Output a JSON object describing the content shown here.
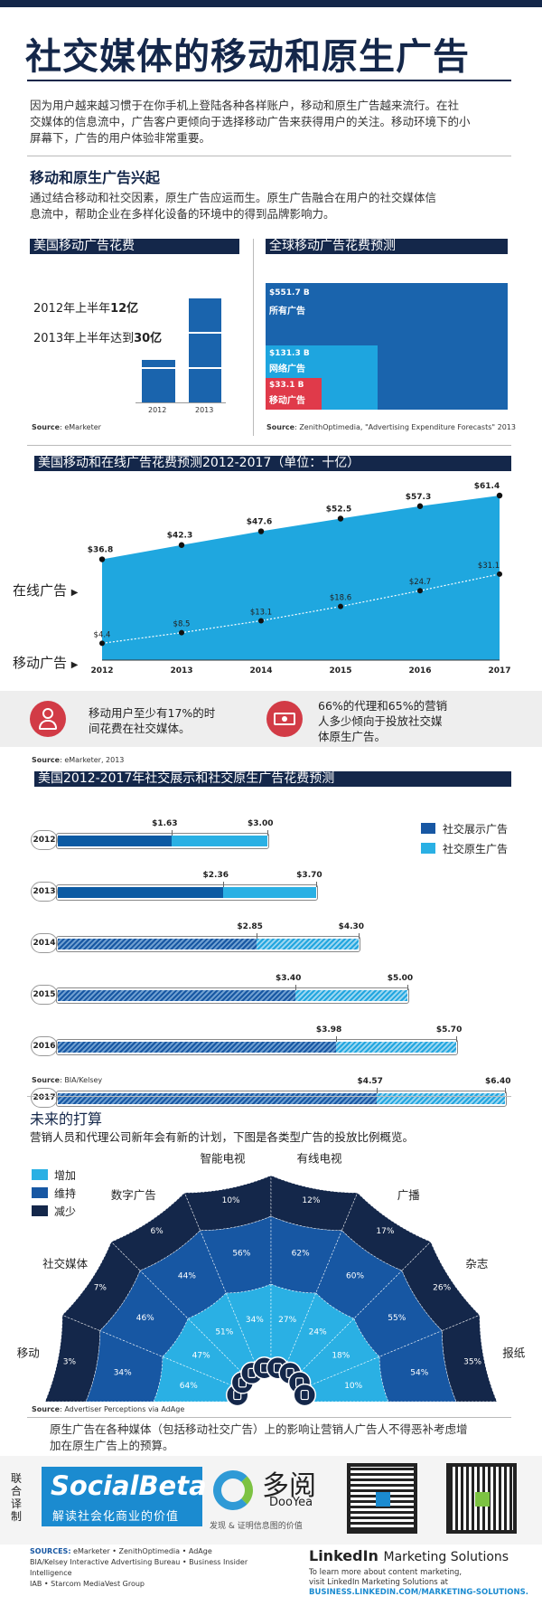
{
  "title": "社交媒体的移动和原生广告",
  "intro": [
    "因为用户越来越习惯于在你手机上登陆各种各样账户，移动和原生广告越来流行。在社",
    "交媒体的信息流中，广告客户更倾向于选择移动广告来获得用户的关注。移动环境下的小",
    "屏幕下，广告的用户体验非常重要。"
  ],
  "section1": {
    "heading": "移动和原生广告兴起",
    "text": [
      "通过结合移动和社交因素，原生广告应运而生。原生广告融合在用户的社交媒体信",
      "息流中，帮助企业在多样化设备的环境中的得到品牌影响力。"
    ]
  },
  "us_mobile": {
    "header": "美国移动广告花费",
    "line1_prefix": "2012年上半年",
    "line1_value": "12亿",
    "line2_prefix": "2013年上半年达到",
    "line2_value": "30亿",
    "years": [
      "2012",
      "2013"
    ],
    "source_label": "Source",
    "source": ": eMarketer"
  },
  "global": {
    "header": "全球移动广告花费预测",
    "all": {
      "value": "$551.7 B",
      "label": "所有广告"
    },
    "online": {
      "value": "$131.3 B",
      "label": "网络广告"
    },
    "mobile": {
      "value": "$33.1 B",
      "label": "移动广告"
    },
    "source_label": "Source",
    "source": ": ZenithOptimedia, \"Advertising Expenditure Forecasts\" 2013"
  },
  "forecast": {
    "header": "美国移动和在线广告花费预测2012-2017（单位：十亿）",
    "online_label": "在线广告",
    "mobile_label": "移动广告",
    "colors": {
      "area": "#1fa7df",
      "navy": "#14274a"
    }
  },
  "chart_data": {
    "type": "area",
    "x": [
      "2012",
      "2013",
      "2014",
      "2015",
      "2016",
      "2017"
    ],
    "series": [
      {
        "name": "在线广告",
        "values": [
          36.8,
          42.3,
          47.6,
          52.5,
          57.3,
          61.4
        ],
        "labels": [
          "$36.8",
          "$42.3",
          "$47.6",
          "$52.5",
          "$57.3",
          "$61.4"
        ]
      },
      {
        "name": "移动广告",
        "values": [
          4.4,
          8.5,
          13.1,
          18.6,
          24.7,
          31.1
        ],
        "labels": [
          "$4.4",
          "$8.5",
          "$13.1",
          "$18.6",
          "$24.7",
          "$31.1"
        ]
      }
    ]
  },
  "stats": {
    "left": [
      "移动用户至少有17%的时",
      "间花费在社交媒体。"
    ],
    "right": [
      "66%的代理和65%的营销",
      "人多少倾向于投放社交媒",
      "体原生广告。"
    ],
    "source_label": "Source",
    "source": ": eMarketer, 2013"
  },
  "social": {
    "header": "美国2012-2017年社交展示和社交原生广告花费预测",
    "legend": [
      {
        "name": "社交展示广告",
        "color": "#1757a3"
      },
      {
        "name": "社交原生广告",
        "color": "#2ab0e4"
      }
    ],
    "rows": [
      {
        "year": "2012",
        "display": 1.63,
        "total": 3.0,
        "dl": "$1.63",
        "tl": "$3.00"
      },
      {
        "year": "2013",
        "display": 2.36,
        "total": 3.7,
        "dl": "$2.36",
        "tl": "$3.70"
      },
      {
        "year": "2014",
        "display": 2.85,
        "total": 4.3,
        "dl": "$2.85",
        "tl": "$4.30"
      },
      {
        "year": "2015",
        "display": 3.4,
        "total": 5.0,
        "dl": "$3.40",
        "tl": "$5.00"
      },
      {
        "year": "2016",
        "display": 3.98,
        "total": 5.7,
        "dl": "$3.98",
        "tl": "$5.70"
      },
      {
        "year": "2017",
        "display": 4.57,
        "total": 6.4,
        "dl": "$4.57",
        "tl": "$6.40"
      }
    ],
    "source_label": "Source",
    "source": ": BIA/Kelsey"
  },
  "future": {
    "heading": "未来的打算",
    "text": "营销人员和代理公司新年会有新的计划，下图是各类型广告的投放比例概览。",
    "legend": [
      {
        "name": "增加",
        "color": "#2ab0e4"
      },
      {
        "name": "维持",
        "color": "#1757a3"
      },
      {
        "name": "减少",
        "color": "#14274a"
      }
    ],
    "categories": [
      {
        "name": "移动",
        "inc": "64%",
        "keep": "34%",
        "dec": "3%"
      },
      {
        "name": "社交媒体",
        "inc": "47%",
        "keep": "46%",
        "dec": "7%"
      },
      {
        "name": "数字广告",
        "inc": "51%",
        "keep": "44%",
        "dec": "6%"
      },
      {
        "name": "智能电视",
        "inc": "34%",
        "keep": "56%",
        "dec": "10%"
      },
      {
        "name": "有线电视",
        "inc": "27%",
        "keep": "62%",
        "dec": "12%"
      },
      {
        "name": "广播",
        "inc": "24%",
        "keep": "60%",
        "dec": "17%"
      },
      {
        "name": "杂志",
        "inc": "18%",
        "keep": "55%",
        "dec": "26%"
      },
      {
        "name": "报纸",
        "inc": "10%",
        "keep": "54%",
        "dec": "35%"
      }
    ],
    "source_label": "Source",
    "source": ": Advertiser Perceptions via AdAge"
  },
  "conclusion": [
    "原生广告在各种媒体（包括移动社交广告）上的影响让营销人广告人不得恶补考虑增",
    "加在原生广告上的预算。"
  ],
  "footer": {
    "side_label": "联合译制",
    "socialbeta_name": "SocialBeta",
    "socialbeta_tagline": "解读社会化商业的价值",
    "dooyea_cn": "多阅",
    "dooyea_en": "DooYea",
    "dooyea_tagline": "发现 & 证明信息图的价值",
    "sources_label": "SOURCES:",
    "sources_line1": " eMarketer • ZenithOptimedia • AdAge",
    "sources_line2": "BIA/Kelsey Interactive Advertising Bureau • Business Insider Intelligence",
    "sources_line3": "IAB • Starcom MediaVest Group",
    "linkedin_brand": "LinkedIn",
    "linkedin_title": "Marketing Solutions",
    "linkedin_l1": "To learn more about content marketing,",
    "linkedin_l2": "visit LinkedIn Marketing Solutions at",
    "linkedin_url": "BUSINESS.LINKEDIN.COM/MARKETING-SOLUTIONS."
  }
}
